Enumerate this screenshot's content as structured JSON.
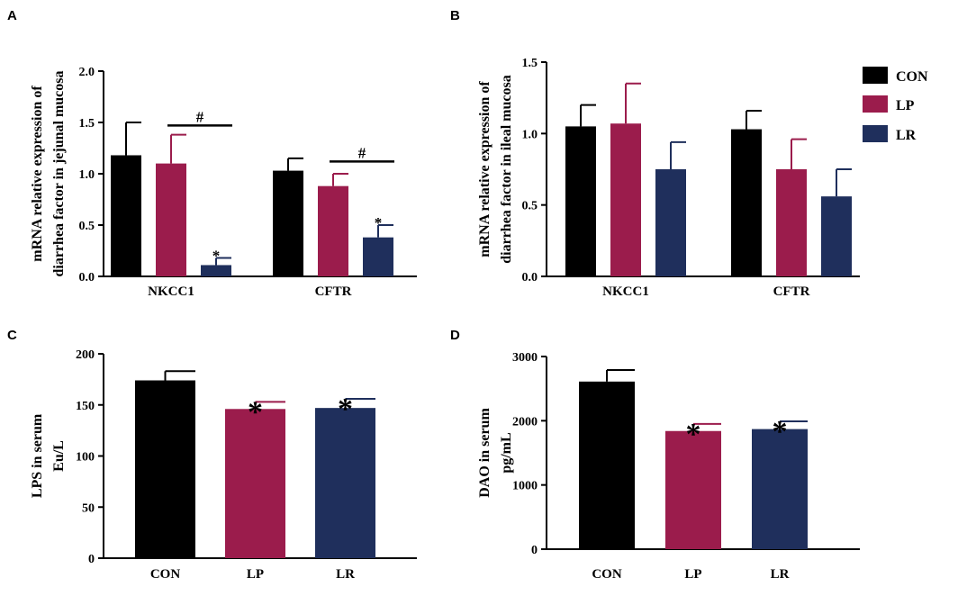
{
  "colors": {
    "CON": "#000000",
    "LP": "#9b1c4c",
    "LR": "#1f2f5c"
  },
  "legend": [
    "CON",
    "LP",
    "LR"
  ],
  "chart_data": [
    {
      "panel": "A",
      "type": "bar",
      "ylabel": [
        "mRNA relative expression of",
        "diarrhea factor in jejunal mucosa"
      ],
      "ylim": [
        0,
        2.0
      ],
      "yticks": [
        "0.0",
        "0.5",
        "1.0",
        "1.5",
        "2.0"
      ],
      "categories": [
        "NKCC1",
        "CFTR"
      ],
      "series": [
        {
          "name": "CON",
          "values": [
            1.18,
            1.03
          ],
          "errors": [
            0.32,
            0.12
          ]
        },
        {
          "name": "LP",
          "values": [
            1.1,
            0.88
          ],
          "errors": [
            0.28,
            0.12
          ]
        },
        {
          "name": "LR",
          "values": [
            0.11,
            0.38
          ],
          "errors": [
            0.07,
            0.12
          ]
        }
      ],
      "annotations": [
        {
          "text": "*",
          "category": 0,
          "series": 2
        },
        {
          "text": "*",
          "category": 1,
          "series": 2
        },
        {
          "text": "#",
          "category": 0,
          "from_series": 1,
          "to_series": 2,
          "level": 1.47
        },
        {
          "text": "#",
          "category": 1,
          "from_series": 1,
          "to_series": 2,
          "level": 1.12
        }
      ]
    },
    {
      "panel": "B",
      "type": "bar",
      "ylabel": [
        "mRNA relative expression of",
        "diarrhea factor in ileal mucosa"
      ],
      "ylim": [
        0,
        1.5
      ],
      "yticks": [
        "0.0",
        "0.5",
        "1.0",
        "1.5"
      ],
      "categories": [
        "NKCC1",
        "CFTR"
      ],
      "series": [
        {
          "name": "CON",
          "values": [
            1.05,
            1.03
          ],
          "errors": [
            0.15,
            0.13
          ]
        },
        {
          "name": "LP",
          "values": [
            1.07,
            0.75
          ],
          "errors": [
            0.28,
            0.21
          ]
        },
        {
          "name": "LR",
          "values": [
            0.75,
            0.56
          ],
          "errors": [
            0.19,
            0.19
          ]
        }
      ],
      "annotations": []
    },
    {
      "panel": "C",
      "type": "bar",
      "ylabel": [
        "LPS in serum",
        "Eu/L"
      ],
      "ylim": [
        0,
        200
      ],
      "yticks": [
        "0",
        "50",
        "100",
        "150",
        "200"
      ],
      "categories": [
        "CON",
        "LP",
        "LR"
      ],
      "values": [
        174,
        146,
        147
      ],
      "errors": [
        9,
        7,
        9
      ],
      "annotations": [
        {
          "text": "*",
          "index": 1
        },
        {
          "text": "*",
          "index": 2
        }
      ]
    },
    {
      "panel": "D",
      "type": "bar",
      "ylabel": [
        "DAO in serum",
        "pg/mL"
      ],
      "ylim": [
        0,
        3000
      ],
      "yticks": [
        "0",
        "1000",
        "2000",
        "3000"
      ],
      "categories": [
        "CON",
        "LP",
        "LR"
      ],
      "values": [
        2610,
        1840,
        1870
      ],
      "errors": [
        180,
        110,
        120
      ],
      "annotations": [
        {
          "text": "*",
          "index": 1
        },
        {
          "text": "*",
          "index": 2
        }
      ]
    }
  ]
}
